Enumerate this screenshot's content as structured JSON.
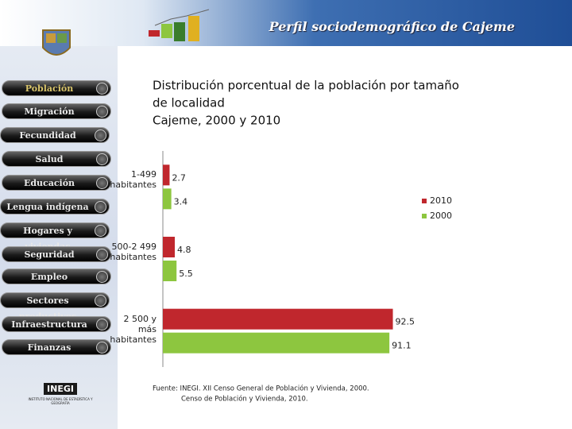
{
  "header": {
    "title": "Perfil sociodemográfico de Cajeme"
  },
  "nav": {
    "items": [
      "Población",
      "Migración",
      "Fecundidad",
      "Salud",
      "Educación",
      "Lengua indígena",
      "Hogares y viviendas",
      "Seguridad",
      "Empleo",
      "Sectores productivos",
      "Infraestructura",
      "Finanzas"
    ]
  },
  "logo": {
    "name": "INEGI",
    "subtitle": "INSTITUTO NACIONAL DE ESTADÍSTICA Y GEOGRAFÍA"
  },
  "chart_data": {
    "type": "hbar",
    "title": [
      "Distribución porcentual de la población por tamaño",
      "de localidad",
      "Cajeme, 2000 y 2010"
    ],
    "categories": [
      "1-499 habitantes",
      "500-2 499 habitantes",
      "2 500 y más habitantes"
    ],
    "series": [
      {
        "name": "2010",
        "color": "#c0272d",
        "values": [
          2.7,
          4.8,
          92.5
        ]
      },
      {
        "name": "2000",
        "color": "#8dc63f",
        "values": [
          3.4,
          5.5,
          91.1
        ]
      }
    ],
    "xlim": [
      0,
      100
    ],
    "legend": "right",
    "source": [
      "Fuente: INEGI. XII Censo General de Población y Vivienda, 2000.",
      "Censo de Población y Vivienda, 2010."
    ]
  }
}
